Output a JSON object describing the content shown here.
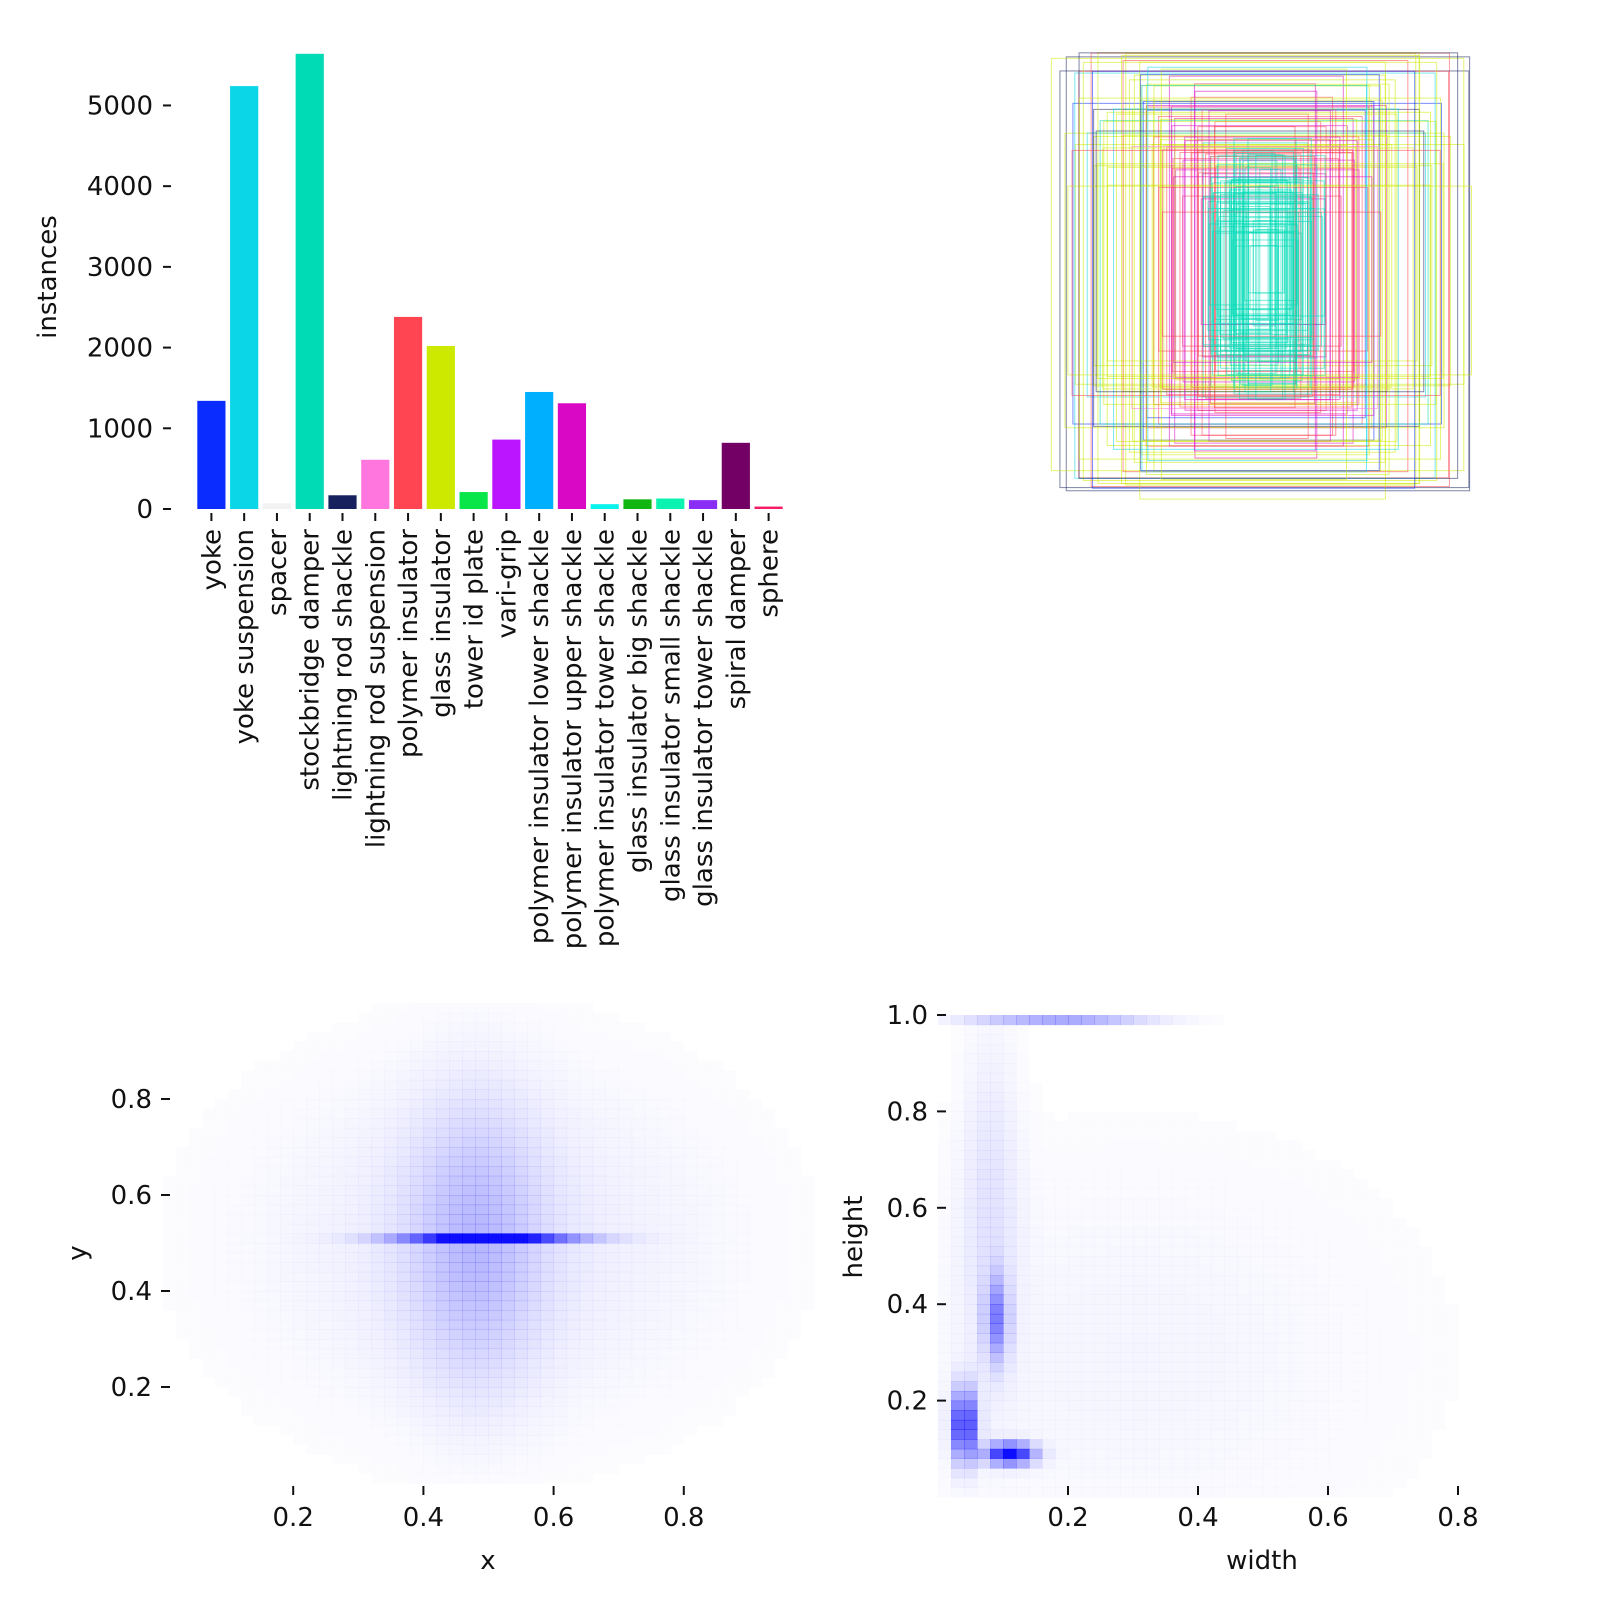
{
  "chart_data": [
    {
      "type": "bar",
      "ylabel": "instances",
      "yticks": [
        "0",
        "1000",
        "2000",
        "3000",
        "4000",
        "5000"
      ],
      "ylim": [
        0,
        5650
      ],
      "categories": [
        "yoke",
        "yoke suspension",
        "spacer",
        "stockbridge damper",
        "lightning rod shackle",
        "lightning rod suspension",
        "polymer insulator",
        "glass insulator",
        "tower id plate",
        "vari-grip",
        "polymer insulator lower shackle",
        "polymer insulator upper shackle",
        "polymer insulator tower shackle",
        "glass insulator big shackle",
        "glass insulator small shackle",
        "glass insulator tower shackle",
        "spiral damper",
        "sphere"
      ],
      "values": [
        1340,
        5240,
        70,
        5640,
        170,
        610,
        2380,
        2020,
        210,
        860,
        1450,
        1310,
        60,
        120,
        130,
        110,
        820,
        30
      ],
      "colors": [
        "#0a2cff",
        "#0bd6e8",
        "#f2f2f2",
        "#00dbb6",
        "#16215e",
        "#ff77de",
        "#ff4552",
        "#cde900",
        "#08e64a",
        "#bb14ff",
        "#00b0ff",
        "#d908c5",
        "#0bf1ec",
        "#11b613",
        "#0bf3b0",
        "#8b2ef5",
        "#730064",
        "#f51c63"
      ]
    },
    {
      "type": "box-overlay",
      "description": "",
      "box_colors": [
        "#0a2cff",
        "#cde900",
        "#00dbb6",
        "#ff4552",
        "#d908c5",
        "#0bd6e8",
        "#16215e",
        "#ff77de"
      ]
    },
    {
      "type": "heatmap",
      "xlabel": "x",
      "ylabel": "y",
      "xticks": [
        "0.2",
        "0.4",
        "0.6",
        "0.8"
      ],
      "yticks": [
        "0.2",
        "0.4",
        "0.6",
        "0.8"
      ],
      "xlim": [
        0.0,
        1.0
      ],
      "ylim": [
        0.0,
        1.0
      ],
      "color": "#0000ff",
      "peaks": [
        {
          "x": 0.5,
          "y": 0.51,
          "sx": 0.09,
          "sy": 0.006,
          "w": 1.0
        },
        {
          "x": 0.48,
          "y": 0.5,
          "sx": 0.07,
          "sy": 0.2,
          "w": 0.22
        },
        {
          "x": 0.5,
          "y": 0.5,
          "sx": 0.25,
          "sy": 0.25,
          "w": 0.08
        }
      ]
    },
    {
      "type": "heatmap",
      "xlabel": "width",
      "ylabel": "height",
      "xticks": [
        "0.2",
        "0.4",
        "0.6",
        "0.8"
      ],
      "yticks": [
        "0.2",
        "0.4",
        "0.6",
        "0.8",
        "1.0"
      ],
      "xlim": [
        0.0,
        1.0
      ],
      "ylim": [
        0.0,
        1.0
      ],
      "color": "#0000ff",
      "peaks": [
        {
          "x": 0.04,
          "y": 0.15,
          "sx": 0.012,
          "sy": 0.05,
          "w": 0.9
        },
        {
          "x": 0.11,
          "y": 0.09,
          "sx": 0.025,
          "sy": 0.015,
          "w": 1.0
        },
        {
          "x": 0.09,
          "y": 0.37,
          "sx": 0.012,
          "sy": 0.06,
          "w": 0.45
        },
        {
          "x": 0.19,
          "y": 0.99,
          "sx": 0.09,
          "sy": 0.006,
          "w": 0.35
        },
        {
          "x": 0.08,
          "y": 0.6,
          "sx": 0.03,
          "sy": 0.25,
          "w": 0.1
        },
        {
          "x": 0.3,
          "y": 0.3,
          "sx": 0.3,
          "sy": 0.3,
          "w": 0.04
        }
      ]
    }
  ]
}
